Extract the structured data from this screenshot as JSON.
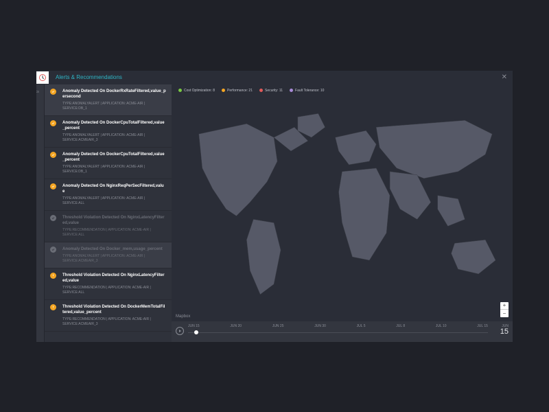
{
  "colors": {
    "bg_outer": "#1f2128",
    "bg_panel": "#2a2d37",
    "bg_list": "#2f323b",
    "bg_selected": "#3a3d47",
    "bg_timeline": "#33363f",
    "text_title": "#2fb6c6",
    "text_primary": "#ffffff",
    "text_muted": "#8a8d96",
    "icon_orange": "#f5a623",
    "icon_dim": "#6a6d76",
    "legend_green": "#7ac943",
    "legend_orange": "#f5a623",
    "legend_red": "#e05a5a",
    "legend_purple": "#a98bd8",
    "map_land": "#565967",
    "map_border": "#3a3d47",
    "zoom_bg": "#ffffff"
  },
  "header": {
    "title": "Alerts & Recommendations",
    "close": "✕"
  },
  "sidebar_tab": "rics",
  "legend": [
    {
      "label": "Cost Optimization: 8",
      "color": "#7ac943"
    },
    {
      "label": "Performance: 21",
      "color": "#f5a623"
    },
    {
      "label": "Security: 11",
      "color": "#e05a5a"
    },
    {
      "label": "Fault Tolerance: 10",
      "color": "#a98bd8"
    }
  ],
  "alerts": [
    {
      "icon": "check",
      "selected": true,
      "dim": false,
      "title": "Anomaly Detected On DockerRxRateFiltered,value_persecond",
      "meta": "TYPE:ANOMALYALERT  |  APPLICATION: ACME-AIR  |  SERVICE:DB_1"
    },
    {
      "icon": "check",
      "selected": false,
      "dim": false,
      "title": "Anomaly Detected On DockerCpuTotalFiltered,value_percent",
      "meta": "TYPE:ANOMALYALERT  |  APPLICATION: ACME-AIR  |  SERVICE:ACMEAIR_3"
    },
    {
      "icon": "check",
      "selected": false,
      "dim": false,
      "title": "Anomaly Detected On DockerCpuTotalFiltered,value_percent",
      "meta": "TYPE:ANOMALYALERT  |  APPLICATION: ACME-AIR  |  SERVICE:DB_1"
    },
    {
      "icon": "check",
      "selected": false,
      "dim": false,
      "title": "Anomaly Detected On NginxReqPerSecFiltered,value",
      "meta": "TYPE:ANOMALYALERT  |  APPLICATION: ACME-AIR  |  SERVICE:ALL"
    },
    {
      "icon": "dim",
      "selected": false,
      "dim": true,
      "title": "Threshold Violation Detected On NginxLatencyFiltered,value",
      "meta": "TYPE:RECOMMENDATION  |  APPLICATION: ACME-AIR  |  SERVICE:ALL"
    },
    {
      "icon": "dim",
      "selected": true,
      "dim": true,
      "title": "Anomaly Detected On Docker_mem,usage_percent",
      "meta": "TYPE:ANOMALYALERT  |  APPLICATION: ACME-AIR  |  SERVICE:ACMEAIR_3"
    },
    {
      "icon": "warn",
      "selected": false,
      "dim": false,
      "title": "Threshold Violation Detected On NginxLatencyFiltered,value",
      "meta": "TYPE:RECOMMENDATION  |  APPLICATION: ACME-AIR  |  SERVICE:ALL"
    },
    {
      "icon": "warn",
      "selected": false,
      "dim": false,
      "title": "Threshold Violation Detected On DockerMemTotalFiltered,value_percent",
      "meta": "TYPE:RECOMMENDATION  |  APPLICATION: ACME-AIR  |  SERVICE:ACMEAIR_3"
    }
  ],
  "map": {
    "attribution": "Mapbox",
    "zoom_in": "+",
    "zoom_out": "−"
  },
  "timeline": {
    "ticks": [
      "JUN 15",
      "JUN 20",
      "JUN 25",
      "JUN 30",
      "JUL 5",
      "JUL 8",
      "JUL 10",
      "JUL 15"
    ],
    "handle_position_pct": 2,
    "current_month": "JUN",
    "current_day": "15"
  }
}
